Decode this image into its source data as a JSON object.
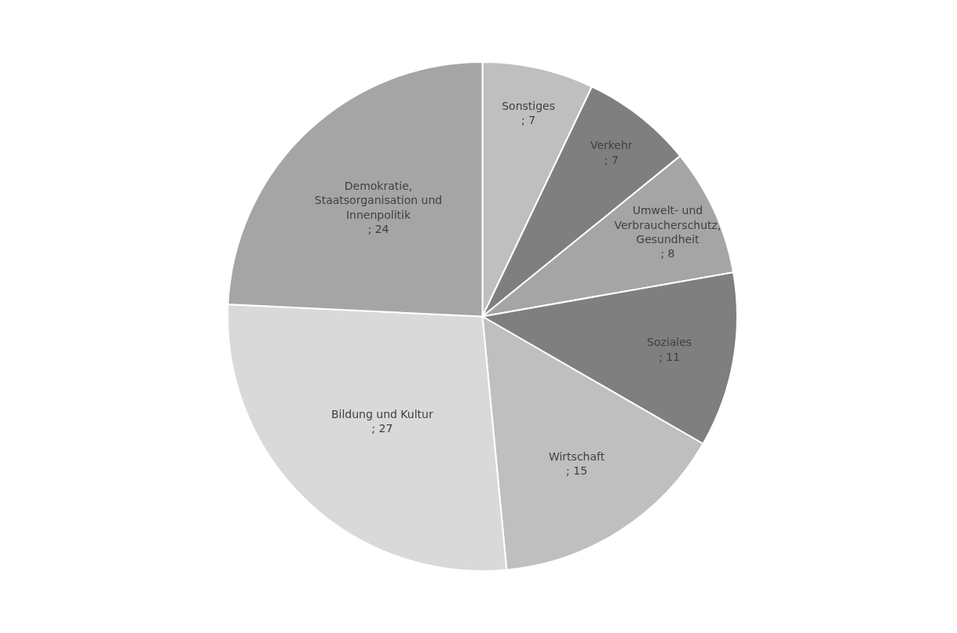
{
  "chart_data": {
    "type": "pie",
    "categories": [
      "Sonstiges",
      "Verkehr",
      "Umwelt- und Verbraucherschutz, Gesundheit",
      "Soziales",
      "Wirtschaft",
      "Bildung und Kultur",
      "Demokratie, Staatsorganisation und Innenpolitik"
    ],
    "values": [
      7,
      7,
      8,
      11,
      15,
      27,
      24
    ],
    "colors": [
      "#bfbfbf",
      "#7f7f7f",
      "#a5a5a5",
      "#7f7f7f",
      "#bfbfbf",
      "#d9d9d9",
      "#a5a5a5"
    ],
    "value_labels": [
      "; 7",
      "; 7",
      "; 8",
      "; 11",
      "; 15",
      "; 27",
      "; 24"
    ],
    "legend": false
  }
}
